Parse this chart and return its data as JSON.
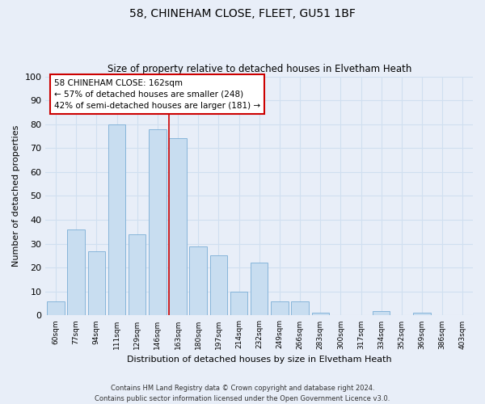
{
  "title": "58, CHINEHAM CLOSE, FLEET, GU51 1BF",
  "subtitle": "Size of property relative to detached houses in Elvetham Heath",
  "xlabel": "Distribution of detached houses by size in Elvetham Heath",
  "ylabel": "Number of detached properties",
  "bin_labels": [
    "60sqm",
    "77sqm",
    "94sqm",
    "111sqm",
    "129sqm",
    "146sqm",
    "163sqm",
    "180sqm",
    "197sqm",
    "214sqm",
    "232sqm",
    "249sqm",
    "266sqm",
    "283sqm",
    "300sqm",
    "317sqm",
    "334sqm",
    "352sqm",
    "369sqm",
    "386sqm",
    "403sqm"
  ],
  "bar_heights": [
    6,
    36,
    27,
    80,
    34,
    78,
    74,
    29,
    25,
    10,
    22,
    6,
    6,
    1,
    0,
    0,
    2,
    0,
    1,
    0,
    0
  ],
  "bar_color_normal": "#c8ddf0",
  "bar_edge_color": "#7aaed6",
  "highlight_bar_index": 6,
  "annotation_line1": "58 CHINEHAM CLOSE: 162sqm",
  "annotation_line2": "← 57% of detached houses are smaller (248)",
  "annotation_line3": "42% of semi-detached houses are larger (181) →",
  "annotation_box_facecolor": "#ffffff",
  "annotation_box_edgecolor": "#cc0000",
  "red_line_color": "#cc0000",
  "ylim": [
    0,
    100
  ],
  "yticks": [
    0,
    10,
    20,
    30,
    40,
    50,
    60,
    70,
    80,
    90,
    100
  ],
  "grid_color": "#d0dff0",
  "bg_color": "#e8eef8",
  "plot_bg_color": "#e8eef8",
  "footer_line1": "Contains HM Land Registry data © Crown copyright and database right 2024.",
  "footer_line2": "Contains public sector information licensed under the Open Government Licence v3.0."
}
